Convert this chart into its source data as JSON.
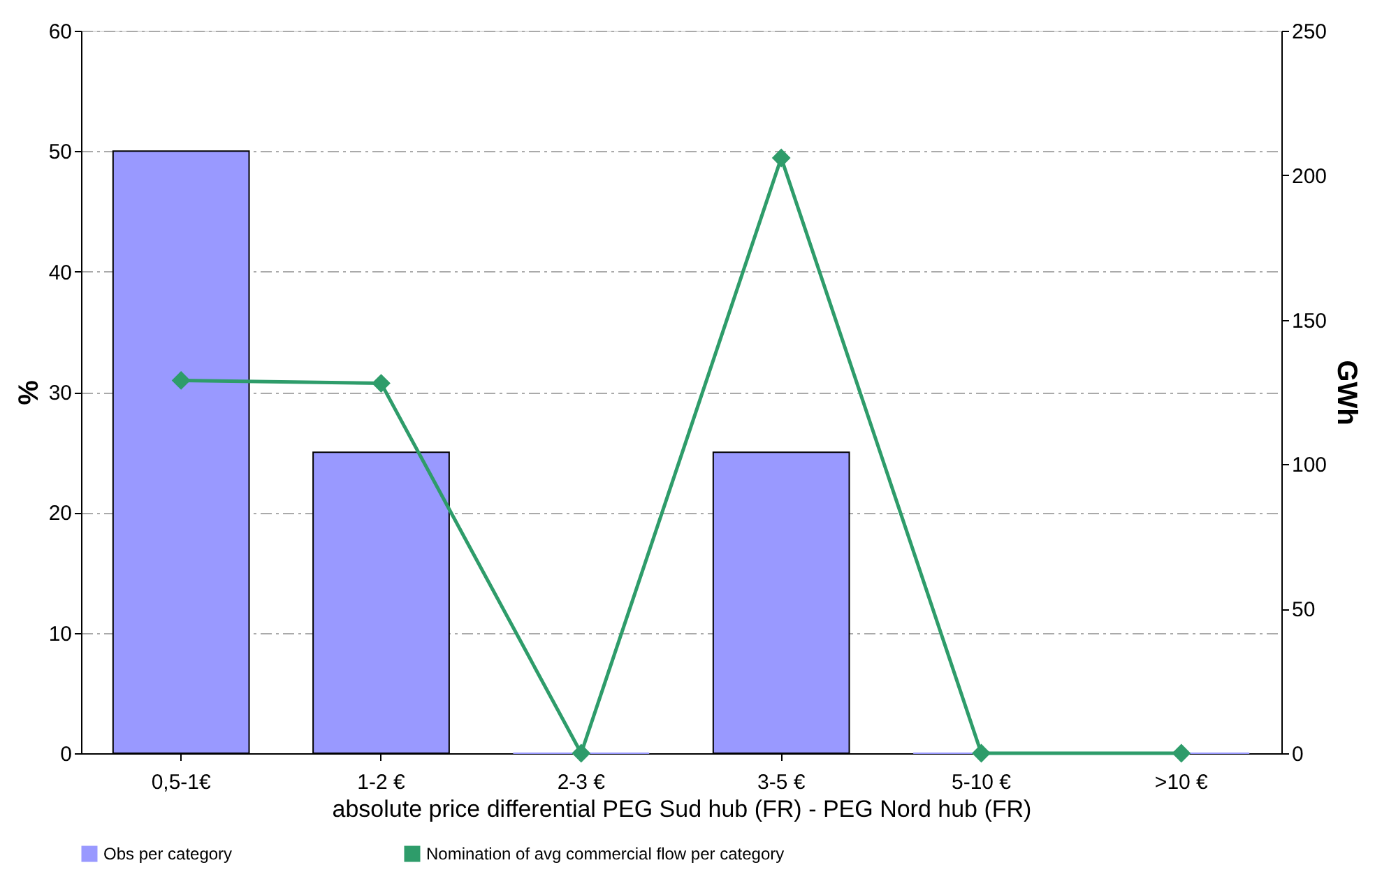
{
  "chart_data": {
    "type": "bar",
    "xlabel": "absolute price differential PEG Sud hub (FR) - PEG Nord hub (FR)",
    "ylabel": "%",
    "y2label": "GWh",
    "categories": [
      "0,5-1€",
      "1-2 €",
      "2-3 €",
      "3-5 €",
      "5-10 €",
      ">10 €"
    ],
    "series": [
      {
        "name": "Obs per category",
        "color": "#9999ff",
        "values": [
          50,
          25,
          0,
          25,
          0,
          0
        ]
      },
      {
        "name": "Nomination of avg commercial flow per category",
        "type": "line",
        "axis": "y2",
        "color": "#2e9c6a",
        "marker": "diamond",
        "values": [
          129,
          128,
          0,
          206,
          0,
          0
        ]
      }
    ],
    "ylim": [
      0,
      60
    ],
    "yticks": [
      0,
      10,
      20,
      30,
      40,
      50,
      60
    ],
    "y2lim": [
      0,
      250
    ],
    "y2ticks": [
      0,
      50,
      100,
      150,
      200,
      250
    ],
    "grid": "y",
    "legend": "bottom"
  }
}
